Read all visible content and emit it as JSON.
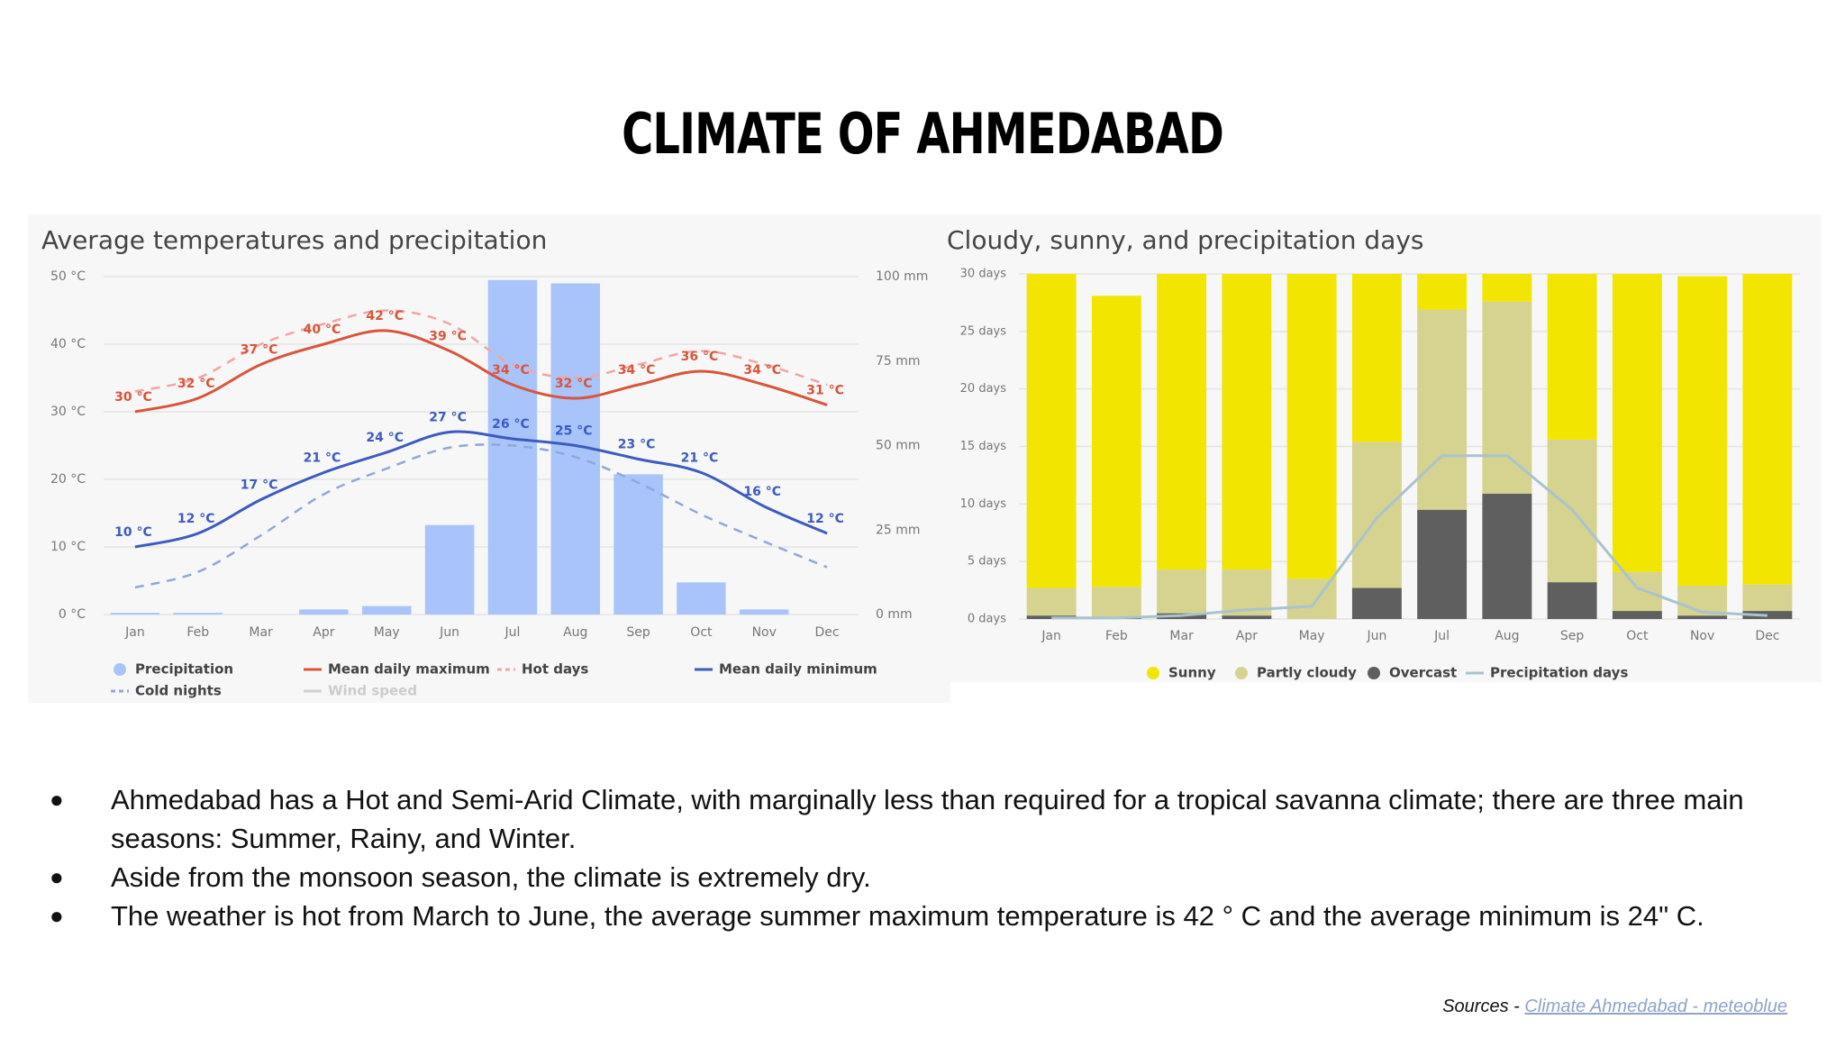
{
  "title": "CLIMATE OF AHMEDABAD",
  "chart_data": [
    {
      "type": "combo",
      "title": "Average temperatures and precipitation",
      "categories": [
        "Jan",
        "Feb",
        "Mar",
        "Apr",
        "May",
        "Jun",
        "Jul",
        "Aug",
        "Sep",
        "Oct",
        "Nov",
        "Dec"
      ],
      "ylim": [
        0,
        50
      ],
      "yticks": [
        {
          "value": 0,
          "label": "0 °C"
        },
        {
          "value": 10,
          "label": "10 °C"
        },
        {
          "value": 20,
          "label": "20 °C"
        },
        {
          "value": 30,
          "label": "30 °C"
        },
        {
          "value": 40,
          "label": "40 °C"
        },
        {
          "value": 50,
          "label": "50 °C"
        }
      ],
      "y2lim": [
        0,
        100
      ],
      "y2ticks": [
        {
          "value": 0,
          "label": "0 mm"
        },
        {
          "value": 25,
          "label": "25 mm"
        },
        {
          "value": 50,
          "label": "50 mm"
        },
        {
          "value": 75,
          "label": "75 mm"
        },
        {
          "value": 100,
          "label": "100 mm"
        }
      ],
      "grid": true,
      "series": [
        {
          "name": "Precipitation",
          "kind": "bar",
          "axis": "y2",
          "color": "#a8c4fb",
          "values": [
            0.5,
            0.5,
            0,
            1.5,
            2.5,
            26.5,
            99,
            98,
            41.5,
            9.5,
            1.5,
            0
          ]
        },
        {
          "name": "Mean daily maximum",
          "kind": "line",
          "color": "#d9553a",
          "values": [
            30,
            32,
            37,
            40,
            42,
            39,
            34,
            32,
            34,
            36,
            34,
            31
          ],
          "value_labels": [
            "30 °C",
            "32 °C",
            "37 °C",
            "40 °C",
            "42 °C",
            "39 °C",
            "34 °C",
            "32 °C",
            "34 °C",
            "36 °C",
            "34 °C",
            "31 °C"
          ]
        },
        {
          "name": "Hot days",
          "kind": "line",
          "dash": true,
          "color": "#f2a5a5",
          "values": [
            33,
            35,
            40,
            43,
            45,
            43,
            37,
            35,
            37,
            39,
            37,
            34
          ]
        },
        {
          "name": "Mean daily minimum",
          "kind": "line",
          "color": "#3d5bbf",
          "values": [
            10,
            12,
            17,
            21,
            24,
            27,
            26,
            25,
            23,
            21,
            16,
            12
          ],
          "value_labels": [
            "10 °C",
            "12 °C",
            "17 °C",
            "21 °C",
            "24 °C",
            "27 °C",
            "26 °C",
            "25 °C",
            "23 °C",
            "21 °C",
            "16 °C",
            "12 °C"
          ]
        },
        {
          "name": "Cold nights",
          "kind": "line",
          "dash": true,
          "color": "#8fa8d8",
          "values": [
            4,
            6.3,
            11.7,
            17.8,
            21.6,
            24.7,
            25,
            23.3,
            19.5,
            14.8,
            10.8,
            7
          ]
        },
        {
          "name": "Wind speed",
          "kind": "line",
          "color": "#d0d0d0",
          "values": [
            null,
            null,
            null,
            null,
            null,
            null,
            null,
            null,
            null,
            null,
            null,
            null
          ]
        }
      ]
    },
    {
      "type": "stacked",
      "title": "Cloudy, sunny, and precipitation days",
      "categories": [
        "Jan",
        "Feb",
        "Mar",
        "Apr",
        "May",
        "Jun",
        "Jul",
        "Aug",
        "Sep",
        "Oct",
        "Nov",
        "Dec"
      ],
      "ylim": [
        0,
        30
      ],
      "yticks": [
        {
          "value": 0,
          "label": "0 days"
        },
        {
          "value": 5,
          "label": "5 days"
        },
        {
          "value": 10,
          "label": "10 days"
        },
        {
          "value": 15,
          "label": "15 days"
        },
        {
          "value": 20,
          "label": "20 days"
        },
        {
          "value": 25,
          "label": "25 days"
        },
        {
          "value": 30,
          "label": "30 days"
        }
      ],
      "grid": true,
      "series": [
        {
          "name": "Sunny",
          "kind": "bar",
          "color": "#f2e600",
          "values": [
            27.3,
            25.3,
            25.7,
            25.7,
            26.5,
            14.6,
            3.1,
            2.4,
            14.4,
            25.9,
            26.9,
            27.0
          ]
        },
        {
          "name": "Partly cloudy",
          "kind": "bar",
          "color": "#d6d28f",
          "values": [
            2.4,
            2.6,
            3.8,
            4.0,
            3.5,
            12.7,
            17.4,
            16.7,
            12.4,
            3.4,
            2.6,
            2.3
          ]
        },
        {
          "name": "Overcast",
          "kind": "bar",
          "color": "#5f5f5f",
          "values": [
            0.3,
            0.2,
            0.5,
            0.3,
            0,
            2.7,
            9.5,
            10.9,
            3.2,
            0.7,
            0.3,
            0.7
          ]
        },
        {
          "name": "Precipitation days",
          "kind": "line",
          "color": "#a9c3cf",
          "values": [
            0.1,
            0.1,
            0.3,
            0.8,
            1.1,
            8.8,
            14.2,
            14.2,
            9.5,
            2.7,
            0.6,
            0.3
          ]
        }
      ]
    }
  ],
  "bullets": [
    "Ahmedabad has a Hot and Semi-Arid Climate, with marginally less than required for a tropical savanna climate; there are three main seasons: Summer, Rainy, and Winter.",
    "Aside from the monsoon season, the climate is extremely dry.",
    "The weather is hot from March to June, the average summer maximum temperature is 42 ° C and the average minimum is 24\" C."
  ],
  "sources": {
    "prefix": "Sources -",
    "link": "Climate Ahmedabad - meteoblue"
  }
}
